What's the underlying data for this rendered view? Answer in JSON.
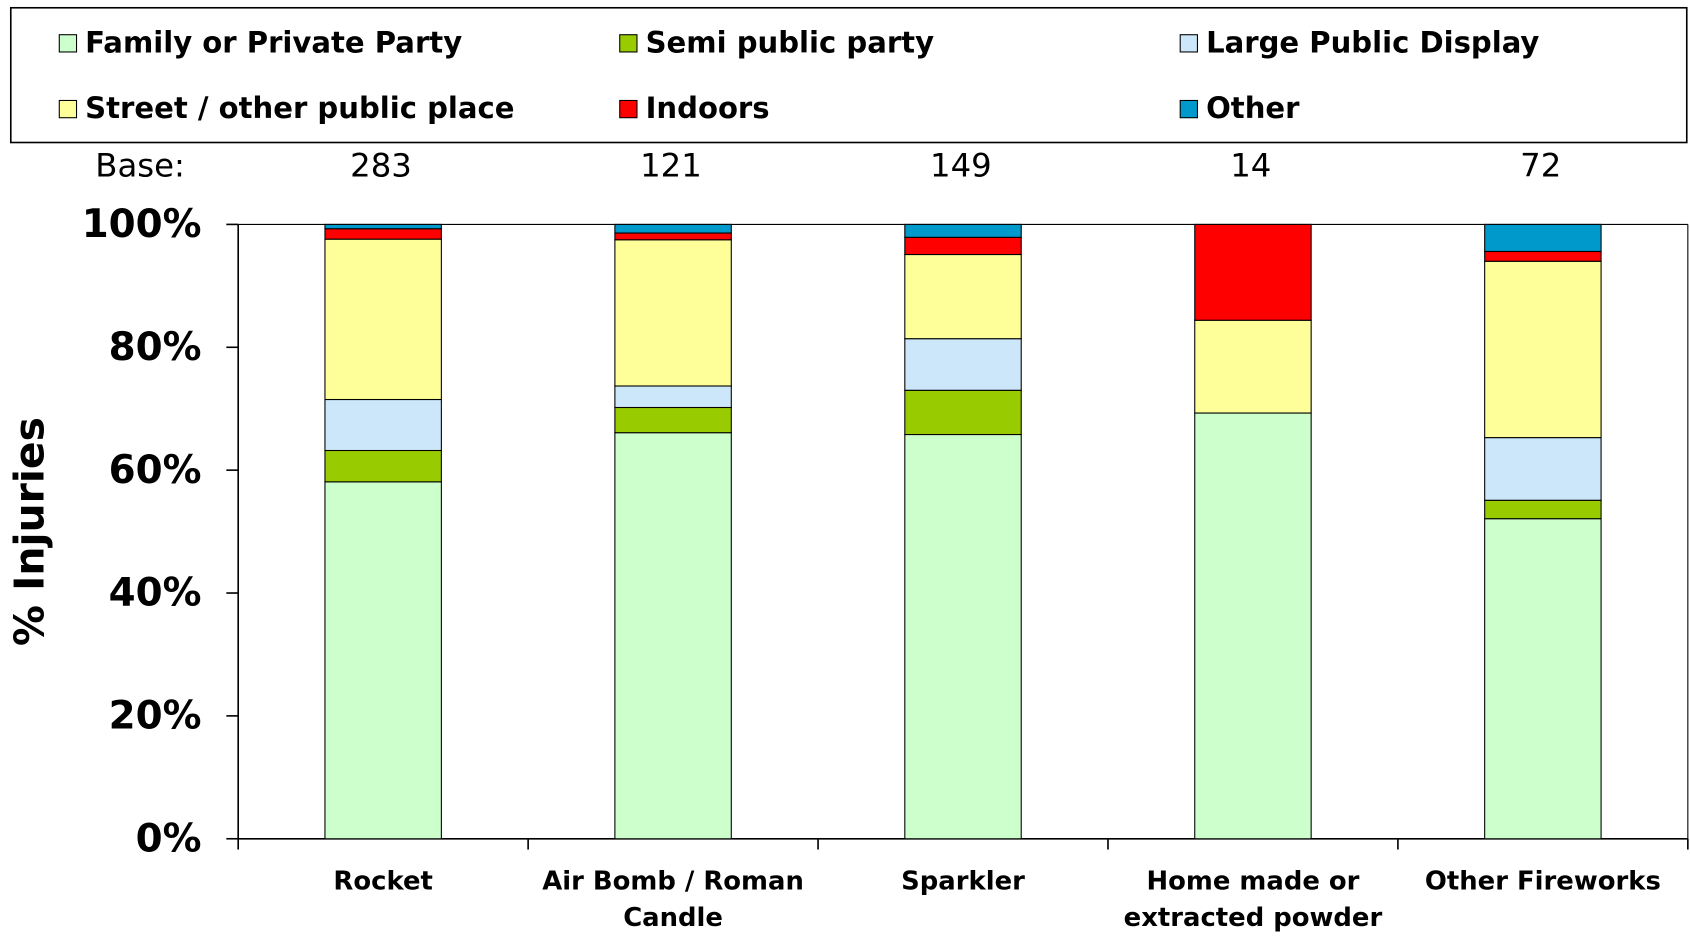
{
  "chart_data": {
    "type": "stacked_bar",
    "y_axis_label": "% Injuries",
    "base_label": "Base:",
    "base": [
      283,
      121,
      149,
      14,
      72
    ],
    "categories": [
      "Rocket",
      "Air Bomb / Roman Candle",
      "Sparkler",
      "Home made or extracted powder",
      "Other Fireworks"
    ],
    "series": [
      {
        "name": "Family or Private Party",
        "color": "#ccffcc",
        "values": [
          58.1,
          66.1,
          65.8,
          69.3,
          52.1
        ]
      },
      {
        "name": "Semi public party",
        "color": "#99cc00",
        "values": [
          5.1,
          4.1,
          7.2,
          0,
          3.0
        ]
      },
      {
        "name": "Large Public Display",
        "color": "#cce6fa",
        "values": [
          8.3,
          3.5,
          8.4,
          0,
          10.2
        ]
      },
      {
        "name": "Street / other public place",
        "color": "#ffff99",
        "values": [
          26.1,
          23.8,
          13.7,
          15.1,
          28.7
        ]
      },
      {
        "name": "Indoors",
        "color": "#ff0000",
        "values": [
          1.7,
          1.1,
          2.8,
          15.6,
          1.6
        ]
      },
      {
        "name": "Other",
        "color": "#0099cc",
        "values": [
          0.7,
          1.4,
          2.1,
          0,
          4.4
        ]
      }
    ],
    "ylim": [
      0,
      100
    ],
    "yticks": [
      {
        "value": 0,
        "label": "0%"
      },
      {
        "value": 20,
        "label": "20%"
      },
      {
        "value": 40,
        "label": "40%"
      },
      {
        "value": 60,
        "label": "60%"
      },
      {
        "value": 80,
        "label": "80%"
      },
      {
        "value": 100,
        "label": "100%"
      }
    ]
  }
}
